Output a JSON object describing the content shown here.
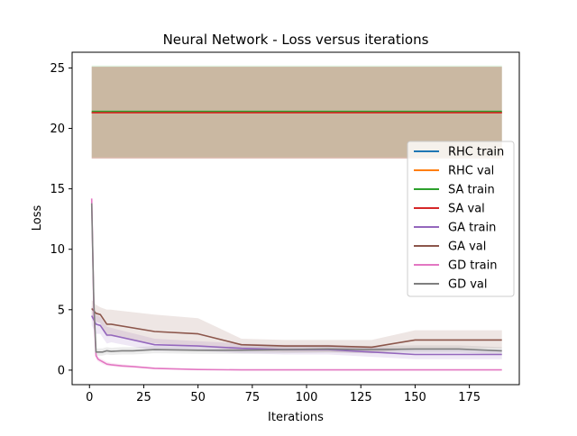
{
  "chart_data": {
    "type": "line",
    "title": "Neural Network - Loss versus iterations",
    "xlabel": "Iterations",
    "ylabel": "Loss",
    "xlim": [
      -8,
      198
    ],
    "ylim": [
      -1.2,
      26.3
    ],
    "xticks": [
      "0",
      "25",
      "50",
      "75",
      "100",
      "125",
      "150",
      "175"
    ],
    "xtick_values": [
      0,
      25,
      50,
      75,
      100,
      125,
      150,
      175
    ],
    "yticks": [
      "0",
      "5",
      "10",
      "15",
      "20",
      "25"
    ],
    "ytick_values": [
      0,
      5,
      10,
      15,
      20,
      25
    ],
    "grid": false,
    "legend_position": "center-right",
    "series": [
      {
        "name": "RHC train",
        "color": "#1f77b4",
        "x": [
          1,
          190
        ],
        "y": [
          21.3,
          21.3
        ],
        "band_upper": [
          25.1,
          25.1
        ],
        "band_lower": [
          17.5,
          17.5
        ]
      },
      {
        "name": "RHC val",
        "color": "#ff7f0e",
        "x": [
          1,
          190
        ],
        "y": [
          21.3,
          21.3
        ],
        "band_upper": [
          25.1,
          25.1
        ],
        "band_lower": [
          17.5,
          17.5
        ]
      },
      {
        "name": "SA train",
        "color": "#2ca02c",
        "x": [
          1,
          190
        ],
        "y": [
          21.4,
          21.4
        ],
        "band_upper": [
          25.2,
          25.2
        ],
        "band_lower": [
          17.6,
          17.6
        ]
      },
      {
        "name": "SA val",
        "color": "#d62728",
        "x": [
          1,
          190
        ],
        "y": [
          21.3,
          21.3
        ],
        "band_upper": [
          25.1,
          25.1
        ],
        "band_lower": [
          17.5,
          17.5
        ]
      },
      {
        "name": "GA train",
        "color": "#9467bd",
        "x": [
          1,
          3,
          5,
          8,
          10,
          30,
          50,
          70,
          90,
          110,
          130,
          150,
          170,
          190
        ],
        "y": [
          4.5,
          3.8,
          3.7,
          2.9,
          2.9,
          2.1,
          2.0,
          1.8,
          1.7,
          1.7,
          1.5,
          1.3,
          1.3,
          1.3
        ],
        "band_upper": [
          5.3,
          4.6,
          4.4,
          3.6,
          3.5,
          2.6,
          2.4,
          2.2,
          2.1,
          2.1,
          1.9,
          1.7,
          1.7,
          1.7
        ],
        "band_lower": [
          3.7,
          3.0,
          3.0,
          2.2,
          2.3,
          1.6,
          1.6,
          1.4,
          1.3,
          1.3,
          1.1,
          0.9,
          0.9,
          0.9
        ]
      },
      {
        "name": "GA val",
        "color": "#8c564b",
        "x": [
          1,
          3,
          5,
          8,
          10,
          30,
          50,
          70,
          90,
          110,
          130,
          150,
          170,
          190
        ],
        "y": [
          5.1,
          4.7,
          4.6,
          3.8,
          3.8,
          3.2,
          3.0,
          2.1,
          2.0,
          2.0,
          1.9,
          2.5,
          2.5,
          2.5
        ],
        "band_upper": [
          5.8,
          5.4,
          5.2,
          5.0,
          5.0,
          4.6,
          4.3,
          2.6,
          2.5,
          2.5,
          2.5,
          3.3,
          3.3,
          3.3
        ],
        "band_lower": [
          4.4,
          4.0,
          3.9,
          2.8,
          2.8,
          2.2,
          2.0,
          1.6,
          1.5,
          1.5,
          1.4,
          1.8,
          1.8,
          1.8
        ]
      },
      {
        "name": "GD train",
        "color": "#e377c2",
        "x": [
          1,
          2,
          3,
          4,
          5,
          6,
          8,
          10,
          15,
          20,
          30,
          50,
          70,
          90,
          110,
          130,
          150,
          170,
          190
        ],
        "y": [
          14.2,
          5.0,
          1.2,
          0.9,
          0.8,
          0.7,
          0.5,
          0.45,
          0.35,
          0.3,
          0.15,
          0.05,
          0.02,
          0.02,
          0.02,
          0.02,
          0.02,
          0.02,
          0.02
        ],
        "band_upper": [
          14.6,
          5.6,
          1.5,
          1.1,
          1.0,
          0.9,
          0.7,
          0.6,
          0.5,
          0.4,
          0.25,
          0.1,
          0.05,
          0.05,
          0.05,
          0.05,
          0.05,
          0.05,
          0.05
        ],
        "band_lower": [
          13.8,
          4.4,
          0.9,
          0.7,
          0.6,
          0.5,
          0.35,
          0.3,
          0.2,
          0.2,
          0.08,
          0.0,
          0.0,
          0.0,
          0.0,
          0.0,
          0.0,
          0.0,
          0.0
        ]
      },
      {
        "name": "GD val",
        "color": "#7f7f7f",
        "x": [
          1,
          2,
          3,
          4,
          5,
          6,
          8,
          10,
          15,
          20,
          30,
          50,
          70,
          90,
          110,
          130,
          150,
          170,
          190
        ],
        "y": [
          13.8,
          5.5,
          1.5,
          1.5,
          1.5,
          1.5,
          1.6,
          1.55,
          1.6,
          1.6,
          1.7,
          1.65,
          1.65,
          1.7,
          1.75,
          1.7,
          1.75,
          1.75,
          1.6
        ],
        "band_upper": [
          14.2,
          6.0,
          1.8,
          1.8,
          1.8,
          1.8,
          1.9,
          1.85,
          1.9,
          1.9,
          2.0,
          1.95,
          1.95,
          2.0,
          2.05,
          2.0,
          2.05,
          2.05,
          1.9
        ],
        "band_lower": [
          13.4,
          5.0,
          1.2,
          1.2,
          1.2,
          1.2,
          1.3,
          1.25,
          1.3,
          1.3,
          1.4,
          1.35,
          1.35,
          1.4,
          1.45,
          1.4,
          1.45,
          1.45,
          1.3
        ]
      }
    ]
  }
}
